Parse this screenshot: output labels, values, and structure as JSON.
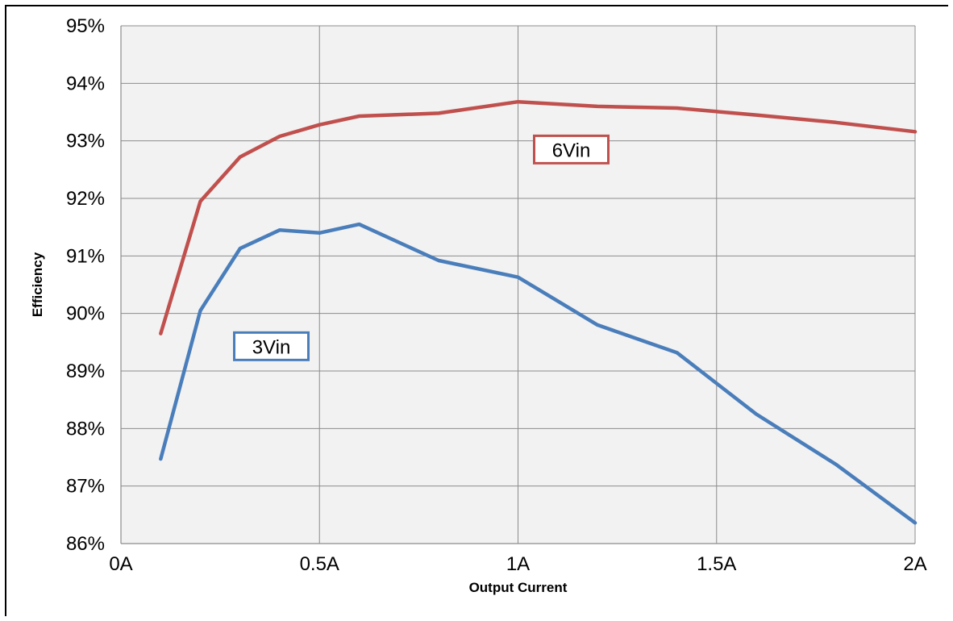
{
  "chart_data": {
    "type": "line",
    "title": "",
    "xlabel": "Output Current",
    "ylabel": "Efficiency",
    "xlim": [
      0,
      2
    ],
    "ylim": [
      86,
      95
    ],
    "x_ticks": [
      {
        "value": 0,
        "label": "0A"
      },
      {
        "value": 0.5,
        "label": "0.5A"
      },
      {
        "value": 1,
        "label": "1A"
      },
      {
        "value": 1.5,
        "label": "1.5A"
      },
      {
        "value": 2,
        "label": "2A"
      }
    ],
    "y_ticks": [
      {
        "value": 86,
        "label": "86%"
      },
      {
        "value": 87,
        "label": "87%"
      },
      {
        "value": 88,
        "label": "88%"
      },
      {
        "value": 89,
        "label": "89%"
      },
      {
        "value": 90,
        "label": "90%"
      },
      {
        "value": 91,
        "label": "91%"
      },
      {
        "value": 92,
        "label": "92%"
      },
      {
        "value": 93,
        "label": "93%"
      },
      {
        "value": 94,
        "label": "94%"
      },
      {
        "value": 95,
        "label": "95%"
      }
    ],
    "grid": true,
    "legend": "none",
    "series": [
      {
        "name": "6Vin",
        "color": "#c0504d",
        "label_box_color": "#c0504d",
        "label_anchor": {
          "x": 1.0,
          "y": 92.85
        },
        "points": [
          {
            "x": 0.1,
            "y": 89.65
          },
          {
            "x": 0.2,
            "y": 91.95
          },
          {
            "x": 0.3,
            "y": 92.72
          },
          {
            "x": 0.4,
            "y": 93.08
          },
          {
            "x": 0.5,
            "y": 93.28
          },
          {
            "x": 0.6,
            "y": 93.43
          },
          {
            "x": 0.8,
            "y": 93.48
          },
          {
            "x": 1.0,
            "y": 93.68
          },
          {
            "x": 1.2,
            "y": 93.6
          },
          {
            "x": 1.4,
            "y": 93.57
          },
          {
            "x": 1.6,
            "y": 93.45
          },
          {
            "x": 1.8,
            "y": 93.32
          },
          {
            "x": 2.0,
            "y": 93.16
          }
        ]
      },
      {
        "name": "3Vin",
        "color": "#4a7ebb",
        "label_box_color": "#4a7ebb",
        "label_anchor": {
          "x": 0.6,
          "y": 89.43
        },
        "points": [
          {
            "x": 0.1,
            "y": 87.47
          },
          {
            "x": 0.2,
            "y": 90.05
          },
          {
            "x": 0.3,
            "y": 91.13
          },
          {
            "x": 0.4,
            "y": 91.45
          },
          {
            "x": 0.5,
            "y": 91.4
          },
          {
            "x": 0.6,
            "y": 91.55
          },
          {
            "x": 0.8,
            "y": 90.92
          },
          {
            "x": 1.0,
            "y": 90.63
          },
          {
            "x": 1.2,
            "y": 89.8
          },
          {
            "x": 1.4,
            "y": 89.32
          },
          {
            "x": 1.6,
            "y": 88.25
          },
          {
            "x": 1.8,
            "y": 87.38
          },
          {
            "x": 2.0,
            "y": 86.36
          }
        ]
      }
    ]
  }
}
